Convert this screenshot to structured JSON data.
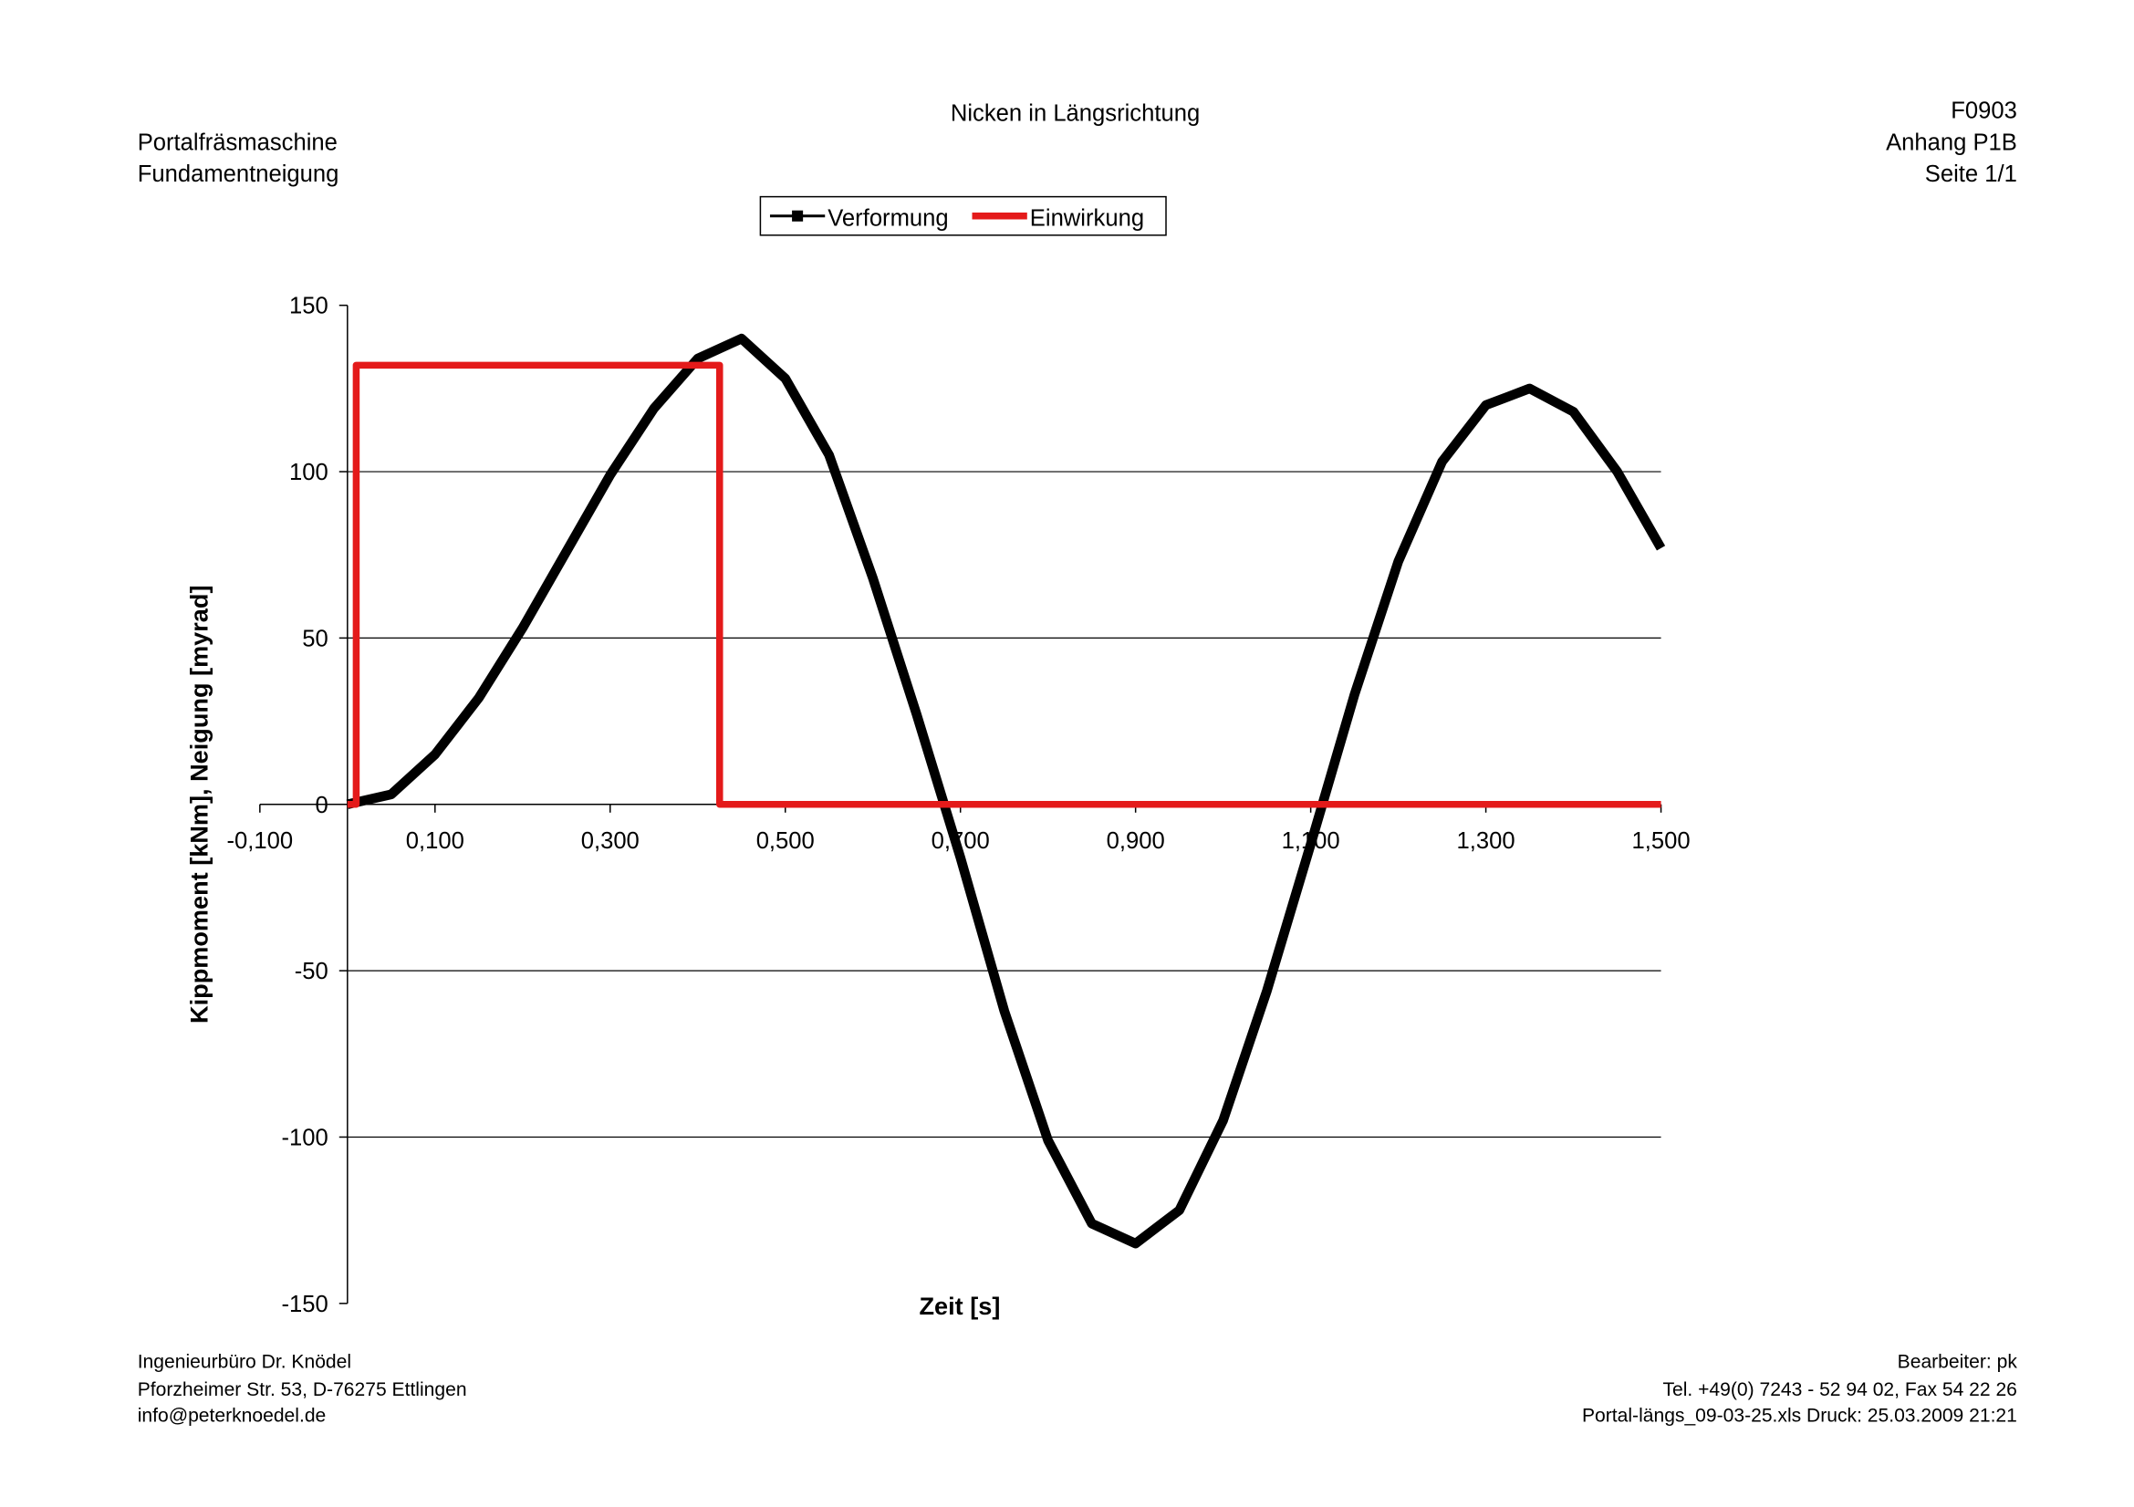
{
  "header": {
    "left": [
      "Portalfräsmaschine",
      "Fundamentneigung"
    ],
    "right": [
      "F0903",
      "Anhang P1B",
      "Seite 1/1"
    ]
  },
  "footer": {
    "left": [
      "Ingenieurbüro Dr. Knödel",
      "Pforzheimer Str. 53, D-76275 Ettlingen",
      "info@peterknoedel.de"
    ],
    "right": [
      "Bearbeiter: pk",
      "Tel. +49(0) 7243 - 52 94 02, Fax 54 22 26",
      "Portal-längs_09-03-25.xls Druck: 25.03.2009 21:21"
    ]
  },
  "chart_data": {
    "type": "line",
    "title": "Nicken in Längsrichtung",
    "x_label": "Zeit [s]",
    "y_label": "Kippmoment [kNm], Neigung [myrad]",
    "xlim": [
      -0.1,
      1.5
    ],
    "xticks": [
      {
        "value": -0.1,
        "label": "-0,100"
      },
      {
        "value": 0.1,
        "label": "0,100"
      },
      {
        "value": 0.3,
        "label": "0,300"
      },
      {
        "value": 0.5,
        "label": "0,500"
      },
      {
        "value": 0.7,
        "label": "0,700"
      },
      {
        "value": 0.9,
        "label": "0,900"
      },
      {
        "value": 1.1,
        "label": "1,100"
      },
      {
        "value": 1.3,
        "label": "1,300"
      },
      {
        "value": 1.5,
        "label": "1,500"
      }
    ],
    "ylim": [
      -150,
      150
    ],
    "yticks": [
      -150,
      -100,
      -50,
      0,
      50,
      100,
      150
    ],
    "grid": true,
    "legend": "top",
    "series": [
      {
        "name": "Verformung",
        "color": "#000000",
        "x": [
          0,
          0.05,
          0.1,
          0.15,
          0.2,
          0.25,
          0.3,
          0.35,
          0.4,
          0.45,
          0.5,
          0.55,
          0.6,
          0.65,
          0.7,
          0.75,
          0.8,
          0.85,
          0.9,
          0.95,
          1.0,
          1.05,
          1.1,
          1.15,
          1.2,
          1.25,
          1.3,
          1.35,
          1.4,
          1.45,
          1.5
        ],
        "values": [
          0,
          3,
          15,
          32,
          53,
          76,
          99,
          119,
          134,
          140,
          128,
          105,
          68,
          27,
          -16,
          -62,
          -101,
          -126,
          -132,
          -122,
          -95,
          -56,
          -12,
          33,
          73,
          103,
          120,
          125,
          118,
          100,
          77
        ]
      },
      {
        "name": "Einwirkung",
        "color": "#e41a1a",
        "x": [
          0,
          0.01,
          0.01,
          0.425,
          0.425,
          1.5
        ],
        "values": [
          0,
          0,
          132,
          132,
          0,
          0
        ]
      }
    ]
  }
}
